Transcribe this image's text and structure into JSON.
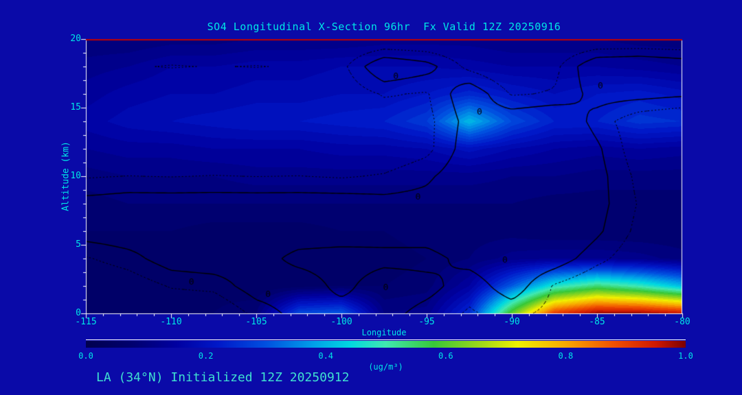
{
  "footer": {
    "text": "LA (34°N) Initialized 12Z 20250912"
  },
  "chart_data": {
    "type": "heatmap",
    "title": "SO4 Longitudinal X-Section 96hr  Fx Valid 12Z 20250916",
    "xlabel": "Longitude",
    "ylabel": "Altitude (km)",
    "units_label": "(ug/m³)",
    "x_range": [
      -115,
      -80
    ],
    "y_range": [
      0,
      20
    ],
    "value_range": [
      0,
      1
    ],
    "grid": {
      "x_values": [
        -115,
        -112.5,
        -110,
        -107.5,
        -105,
        -102.5,
        -100,
        -97.5,
        -95,
        -92.5,
        -90,
        -87.5,
        -85,
        -82.5,
        -80
      ],
      "y_values": [
        20,
        18,
        16,
        14,
        12,
        10,
        8,
        6,
        4,
        2,
        0
      ],
      "values": [
        [
          0.1,
          0.1,
          0.11,
          0.11,
          0.12,
          0.12,
          0.12,
          0.13,
          0.13,
          0.13,
          0.12,
          0.12,
          0.12,
          0.11,
          0.11
        ],
        [
          0.13,
          0.14,
          0.16,
          0.16,
          0.17,
          0.17,
          0.18,
          0.18,
          0.18,
          0.17,
          0.16,
          0.16,
          0.16,
          0.15,
          0.14
        ],
        [
          0.15,
          0.17,
          0.18,
          0.18,
          0.19,
          0.19,
          0.2,
          0.2,
          0.22,
          0.25,
          0.22,
          0.2,
          0.22,
          0.23,
          0.21
        ],
        [
          0.17,
          0.19,
          0.2,
          0.21,
          0.22,
          0.22,
          0.23,
          0.24,
          0.28,
          0.42,
          0.3,
          0.24,
          0.24,
          0.27,
          0.26
        ],
        [
          0.14,
          0.15,
          0.15,
          0.16,
          0.16,
          0.16,
          0.17,
          0.17,
          0.18,
          0.21,
          0.18,
          0.16,
          0.15,
          0.16,
          0.15
        ],
        [
          0.11,
          0.12,
          0.12,
          0.12,
          0.13,
          0.13,
          0.13,
          0.13,
          0.13,
          0.13,
          0.12,
          0.12,
          0.11,
          0.11,
          0.11
        ],
        [
          0.09,
          0.1,
          0.1,
          0.1,
          0.1,
          0.1,
          0.1,
          0.1,
          0.1,
          0.1,
          0.1,
          0.09,
          0.09,
          0.09,
          0.09
        ],
        [
          0.08,
          0.08,
          0.08,
          0.07,
          0.07,
          0.07,
          0.08,
          0.08,
          0.09,
          0.09,
          0.09,
          0.08,
          0.08,
          0.08,
          0.08
        ],
        [
          0.07,
          0.07,
          0.07,
          0.06,
          0.06,
          0.06,
          0.07,
          0.07,
          0.08,
          0.1,
          0.13,
          0.14,
          0.14,
          0.13,
          0.11
        ],
        [
          0.07,
          0.07,
          0.07,
          0.07,
          0.06,
          0.07,
          0.08,
          0.08,
          0.09,
          0.16,
          0.32,
          0.48,
          0.55,
          0.5,
          0.42
        ],
        [
          0.08,
          0.08,
          0.08,
          0.08,
          0.1,
          0.3,
          0.32,
          0.12,
          0.13,
          0.26,
          0.62,
          0.92,
          1.0,
          1.0,
          0.97
        ]
      ]
    },
    "contour_overlay": {
      "level_label": "0",
      "solid_level": 0,
      "dotted_level": -0.45,
      "values": [
        [
          -1,
          -1,
          -1,
          -1,
          -1,
          -1,
          -1,
          -1,
          -1,
          -1,
          -1,
          -1,
          -1,
          -1,
          -1
        ],
        [
          -1,
          -0.5,
          -0.42,
          -0.47,
          -0.43,
          -0.5,
          -0.6,
          0.5,
          0.2,
          -0.6,
          -1,
          -0.6,
          0.5,
          0.6,
          0.4
        ],
        [
          -1,
          -1,
          -1,
          -1,
          -1,
          -1,
          -0.8,
          -0.4,
          -0.5,
          0.4,
          -0.5,
          -0.4,
          0.2,
          0.2,
          0.1
        ],
        [
          -1,
          -1,
          -1,
          -1,
          -1,
          -1,
          -1,
          -0.8,
          -0.6,
          0.2,
          0.4,
          0.6,
          -0.2,
          -0.8,
          -1
        ],
        [
          -1,
          -1,
          -1,
          -1,
          -1,
          -1,
          -1,
          -0.9,
          -0.6,
          0.3,
          0.7,
          0.8,
          0.1,
          -0.8,
          -1
        ],
        [
          -0.5,
          -0.44,
          -0.47,
          -0.43,
          -0.46,
          -0.44,
          -0.5,
          -0.4,
          -0.1,
          0.4,
          0.8,
          0.9,
          0.2,
          -0.6,
          -1
        ],
        [
          0.2,
          0.3,
          0.3,
          0.3,
          0.3,
          0.3,
          0.3,
          0.2,
          0.2,
          0.5,
          0.8,
          0.8,
          0.2,
          -0.5,
          -1
        ],
        [
          0.3,
          0.4,
          0.4,
          0.4,
          0.4,
          0.4,
          0.4,
          0.3,
          0.3,
          0.5,
          0.7,
          0.7,
          0.1,
          -0.6,
          -1
        ],
        [
          -0.5,
          -0.2,
          0.3,
          0.4,
          0.3,
          -0.2,
          -0.3,
          -0.2,
          -0.2,
          0.2,
          0.5,
          0.3,
          -0.3,
          -0.8,
          -1
        ],
        [
          -1,
          -0.8,
          -0.4,
          -0.3,
          0.3,
          0.4,
          -0.2,
          0.4,
          0.2,
          -0.3,
          0.3,
          -0.5,
          -0.9,
          -1,
          -1
        ],
        [
          -1,
          -1,
          -1,
          -1,
          -0.3,
          0.2,
          0.3,
          0.2,
          -0.2,
          -0.5,
          -0.3,
          -0.6,
          -0.8,
          -0.8,
          -0.9
        ]
      ],
      "labels": [
        {
          "lon": -96.8,
          "alt": 17.3
        },
        {
          "lon": -84.8,
          "alt": 16.6
        },
        {
          "lon": -91.9,
          "alt": 14.7
        },
        {
          "lon": -95.5,
          "alt": 8.5
        },
        {
          "lon": -108.8,
          "alt": 2.3
        },
        {
          "lon": -104.3,
          "alt": 1.4
        },
        {
          "lon": -97.4,
          "alt": 1.9
        },
        {
          "lon": -90.4,
          "alt": 3.9
        }
      ]
    },
    "x_ticks": [
      {
        "value": -115,
        "label": "-115"
      },
      {
        "value": -110,
        "label": "-110"
      },
      {
        "value": -105,
        "label": "-105"
      },
      {
        "value": -100,
        "label": "-100"
      },
      {
        "value": -95,
        "label": "-95"
      },
      {
        "value": -90,
        "label": "-90"
      },
      {
        "value": -85,
        "label": "-85"
      },
      {
        "value": -80,
        "label": "-80"
      }
    ],
    "y_ticks": [
      {
        "value": 0,
        "label": "0"
      },
      {
        "value": 5,
        "label": "5"
      },
      {
        "value": 10,
        "label": "10"
      },
      {
        "value": 15,
        "label": "15"
      },
      {
        "value": 20,
        "label": "20"
      }
    ],
    "colorbar": {
      "min": 0.0,
      "max": 1.0,
      "ticks": [
        {
          "value": 0.0,
          "label": "0.0"
        },
        {
          "value": 0.2,
          "label": "0.2"
        },
        {
          "value": 0.4,
          "label": "0.4"
        },
        {
          "value": 0.6,
          "label": "0.6"
        },
        {
          "value": 0.8,
          "label": "0.8"
        },
        {
          "value": 1.0,
          "label": "1.0"
        }
      ],
      "stops": [
        [
          0.0,
          "#00004e"
        ],
        [
          0.08,
          "#000070"
        ],
        [
          0.15,
          "#0000a0"
        ],
        [
          0.22,
          "#0018c8"
        ],
        [
          0.3,
          "#0050e0"
        ],
        [
          0.38,
          "#00a0e8"
        ],
        [
          0.44,
          "#00d8e0"
        ],
        [
          0.5,
          "#40e8b0"
        ],
        [
          0.58,
          "#38c838"
        ],
        [
          0.66,
          "#a0d818"
        ],
        [
          0.72,
          "#f0f000"
        ],
        [
          0.8,
          "#f8a800"
        ],
        [
          0.88,
          "#f05000"
        ],
        [
          0.95,
          "#d01800"
        ],
        [
          1.0,
          "#7a0000"
        ]
      ]
    },
    "colors": {
      "background": "#0a0aa8",
      "text_cyan": "#00e6e6",
      "footer_turquoise": "#3fe0d0",
      "frame_white": "#ffffff",
      "frame_top_red": "#c00000",
      "contour_black": "#000000"
    }
  }
}
